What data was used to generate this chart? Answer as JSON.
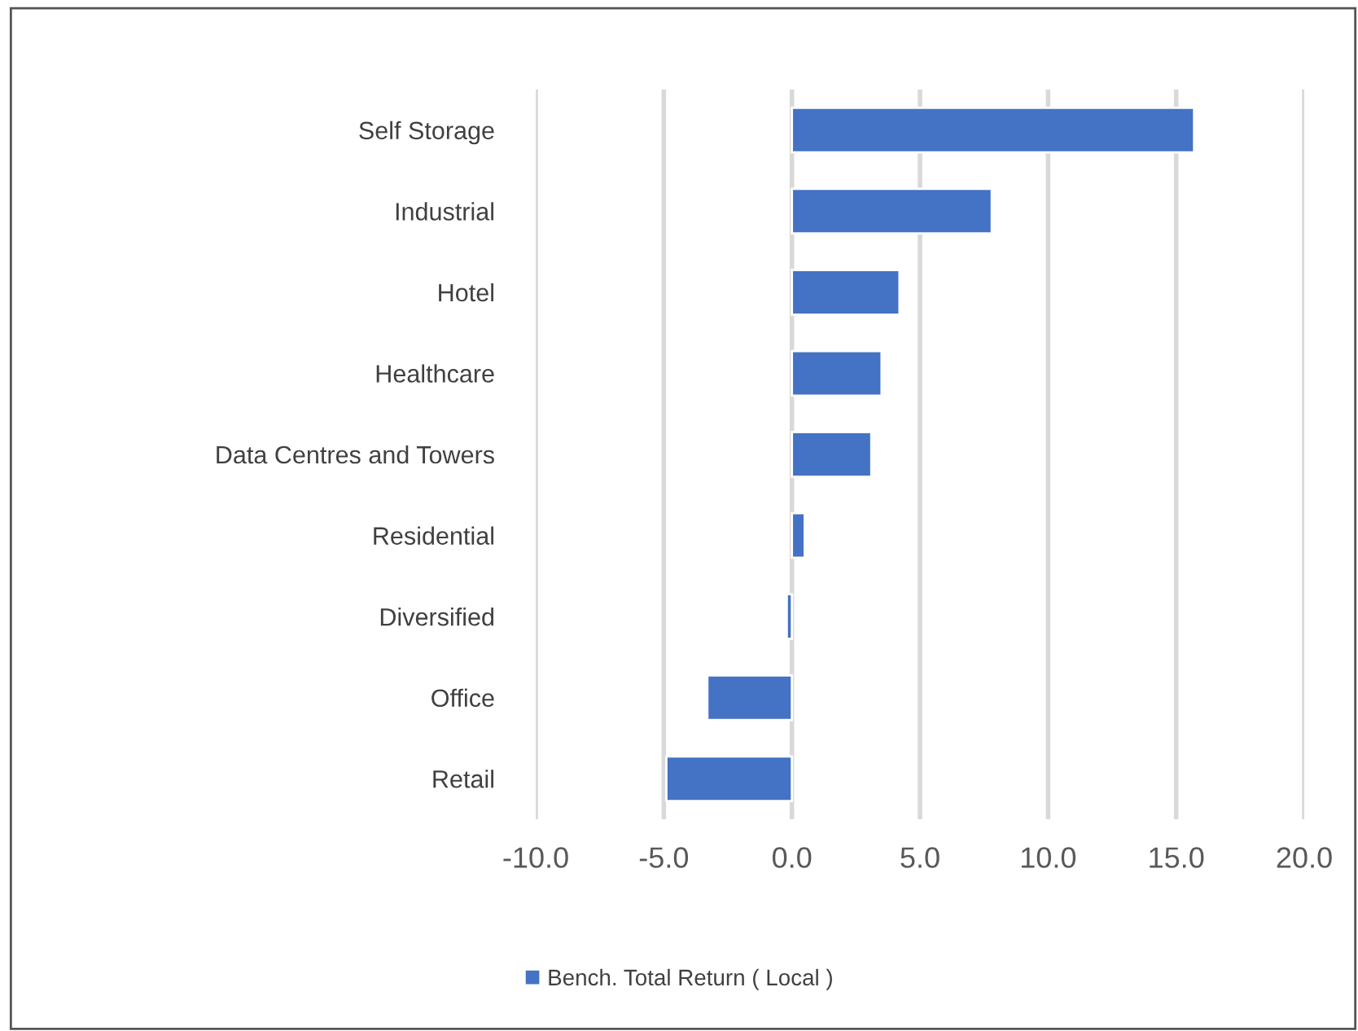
{
  "chart_data": {
    "type": "bar",
    "orientation": "horizontal",
    "categories": [
      "Self Storage",
      "Industrial",
      "Hotel",
      "Healthcare",
      "Data Centres and Towers",
      "Residential",
      "Diversified",
      "Office",
      "Retail"
    ],
    "series": [
      {
        "name": "Bench. Total Return ( Local )",
        "color": "#4472c4",
        "values": [
          15.7,
          7.8,
          4.2,
          3.5,
          3.1,
          0.5,
          -0.2,
          -3.3,
          -4.9
        ]
      }
    ],
    "xlim": [
      -10,
      20
    ],
    "xticks": [
      {
        "value": -10,
        "label": "-10.0"
      },
      {
        "value": -5,
        "label": "-5.0"
      },
      {
        "value": 0,
        "label": "0.0"
      },
      {
        "value": 5,
        "label": "5.0"
      },
      {
        "value": 10,
        "label": "10.0"
      },
      {
        "value": 15,
        "label": "15.0"
      },
      {
        "value": 20,
        "label": "20.0"
      }
    ],
    "grid": "x",
    "legend": "bottom"
  }
}
